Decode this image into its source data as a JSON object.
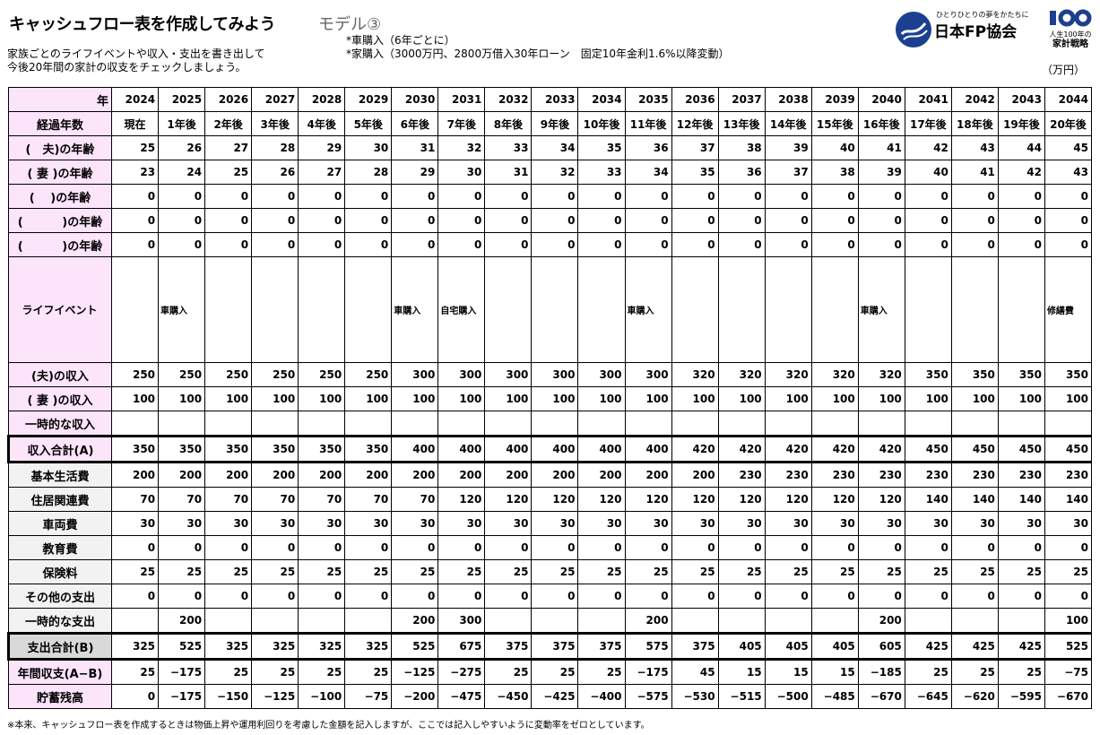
{
  "header": {
    "title": "キャッシュフロー表を作成してみよう",
    "model": "モデル③",
    "description": [
      "家族ごとのライフイベントや収入・支出を書き出して",
      "今後20年間の家計の収支をチェックしましょう。"
    ],
    "notes": [
      "*車購入（6年ごとに）",
      "*家購入（3000万円、2800万借入30年ローン　固定10年金利1.6%以降変動）"
    ],
    "logo_tagline": "ひとりひとりの夢をかたちに",
    "logo_name": "日本FP協会",
    "logo100_text": [
      "人生100年の",
      "家計戦略"
    ],
    "unit": "（万円）"
  },
  "colors": {
    "label_pink": "#fce4fb",
    "label_gray": "#f2f2f2",
    "label_dark_gray": "#d9d9d9",
    "logo_blue": "#1d3f8f"
  },
  "table": {
    "year_label": "年",
    "years": [
      "2024",
      "2025",
      "2026",
      "2027",
      "2028",
      "2029",
      "2030",
      "2031",
      "2032",
      "2033",
      "2034",
      "2035",
      "2036",
      "2037",
      "2038",
      "2039",
      "2040",
      "2041",
      "2042",
      "2043",
      "2044"
    ],
    "elapsed_label": "経過年数",
    "elapsed": [
      "現在",
      "1年後",
      "2年後",
      "3年後",
      "4年後",
      "5年後",
      "6年後",
      "7年後",
      "8年後",
      "9年後",
      "10年後",
      "11年後",
      "12年後",
      "13年後",
      "14年後",
      "15年後",
      "16年後",
      "17年後",
      "18年後",
      "19年後",
      "20年後"
    ],
    "rows": [
      {
        "key": "husband-age",
        "label": "(　夫)の年齢",
        "style": "pink",
        "values": [
          "25",
          "26",
          "27",
          "28",
          "29",
          "30",
          "31",
          "32",
          "33",
          "34",
          "35",
          "36",
          "37",
          "38",
          "39",
          "40",
          "41",
          "42",
          "43",
          "44",
          "45"
        ]
      },
      {
        "key": "wife-age",
        "label": "( 妻 )の年齢",
        "style": "pink",
        "values": [
          "23",
          "24",
          "25",
          "26",
          "27",
          "28",
          "29",
          "30",
          "31",
          "32",
          "33",
          "34",
          "35",
          "36",
          "37",
          "38",
          "39",
          "40",
          "41",
          "42",
          "43"
        ]
      },
      {
        "key": "member3-age",
        "label": "(　 )の年齢",
        "style": "pink",
        "values": [
          "0",
          "0",
          "0",
          "0",
          "0",
          "0",
          "0",
          "0",
          "0",
          "0",
          "0",
          "0",
          "0",
          "0",
          "0",
          "0",
          "0",
          "0",
          "0",
          "0",
          "0"
        ]
      },
      {
        "key": "member4-age",
        "label": "(　　　 )の年齢",
        "style": "pink",
        "values": [
          "0",
          "0",
          "0",
          "0",
          "0",
          "0",
          "0",
          "0",
          "0",
          "0",
          "0",
          "0",
          "0",
          "0",
          "0",
          "0",
          "0",
          "0",
          "0",
          "0",
          "0"
        ]
      },
      {
        "key": "member5-age",
        "label": "(　　　 )の年齢",
        "style": "pink",
        "values": [
          "0",
          "0",
          "0",
          "0",
          "0",
          "0",
          "0",
          "0",
          "0",
          "0",
          "0",
          "0",
          "0",
          "0",
          "0",
          "0",
          "0",
          "0",
          "0",
          "0",
          "0"
        ]
      },
      {
        "key": "life-event",
        "label": "ライフイベント",
        "style": "event",
        "values": [
          "",
          "車購入",
          "",
          "",
          "",
          "",
          "車購入",
          "自宅購入",
          "",
          "",
          "",
          "車購入",
          "",
          "",
          "",
          "",
          "車購入",
          "",
          "",
          "",
          "修繕費"
        ]
      },
      {
        "key": "husband-income",
        "label": "(夫)の収入",
        "style": "pink",
        "values": [
          "250",
          "250",
          "250",
          "250",
          "250",
          "250",
          "300",
          "300",
          "300",
          "300",
          "300",
          "300",
          "320",
          "320",
          "320",
          "320",
          "320",
          "350",
          "350",
          "350",
          "350"
        ]
      },
      {
        "key": "wife-income",
        "label": "( 妻 )の収入",
        "style": "pink",
        "values": [
          "100",
          "100",
          "100",
          "100",
          "100",
          "100",
          "100",
          "100",
          "100",
          "100",
          "100",
          "100",
          "100",
          "100",
          "100",
          "100",
          "100",
          "100",
          "100",
          "100",
          "100"
        ]
      },
      {
        "key": "temporary-income",
        "label": "一時的な収入",
        "style": "pink",
        "values": [
          "",
          "",
          "",
          "",
          "",
          "",
          "",
          "",
          "",
          "",
          "",
          "",
          "",
          "",
          "",
          "",
          "",
          "",
          "",
          "",
          ""
        ]
      },
      {
        "key": "income-total",
        "label": "収入合計(A)",
        "style": "pink-total",
        "values": [
          "350",
          "350",
          "350",
          "350",
          "350",
          "350",
          "400",
          "400",
          "400",
          "400",
          "400",
          "400",
          "420",
          "420",
          "420",
          "420",
          "420",
          "450",
          "450",
          "450",
          "450"
        ]
      },
      {
        "key": "basic-living",
        "label": "基本生活費",
        "style": "gray",
        "values": [
          "200",
          "200",
          "200",
          "200",
          "200",
          "200",
          "200",
          "200",
          "200",
          "200",
          "200",
          "200",
          "200",
          "230",
          "230",
          "230",
          "230",
          "230",
          "230",
          "230",
          "230"
        ]
      },
      {
        "key": "housing",
        "label": "住居関連費",
        "style": "gray",
        "values": [
          "70",
          "70",
          "70",
          "70",
          "70",
          "70",
          "70",
          "120",
          "120",
          "120",
          "120",
          "120",
          "120",
          "120",
          "120",
          "120",
          "120",
          "140",
          "140",
          "140",
          "140"
        ]
      },
      {
        "key": "vehicle",
        "label": "車両費",
        "style": "gray",
        "values": [
          "30",
          "30",
          "30",
          "30",
          "30",
          "30",
          "30",
          "30",
          "30",
          "30",
          "30",
          "30",
          "30",
          "30",
          "30",
          "30",
          "30",
          "30",
          "30",
          "30",
          "30"
        ]
      },
      {
        "key": "education",
        "label": "教育費",
        "style": "gray",
        "values": [
          "0",
          "0",
          "0",
          "0",
          "0",
          "0",
          "0",
          "0",
          "0",
          "0",
          "0",
          "0",
          "0",
          "0",
          "0",
          "0",
          "0",
          "0",
          "0",
          "0",
          "0"
        ]
      },
      {
        "key": "insurance",
        "label": "保険料",
        "style": "gray",
        "values": [
          "25",
          "25",
          "25",
          "25",
          "25",
          "25",
          "25",
          "25",
          "25",
          "25",
          "25",
          "25",
          "25",
          "25",
          "25",
          "25",
          "25",
          "25",
          "25",
          "25",
          "25"
        ]
      },
      {
        "key": "other-expense",
        "label": "その他の支出",
        "style": "gray",
        "values": [
          "0",
          "0",
          "0",
          "0",
          "0",
          "0",
          "0",
          "0",
          "0",
          "0",
          "0",
          "0",
          "0",
          "0",
          "0",
          "0",
          "0",
          "0",
          "0",
          "0",
          "0"
        ]
      },
      {
        "key": "temporary-expense",
        "label": "一時的な支出",
        "style": "gray",
        "values": [
          "",
          "200",
          "",
          "",
          "",
          "",
          "200",
          "300",
          "",
          "",
          "",
          "200",
          "",
          "",
          "",
          "",
          "200",
          "",
          "",
          "",
          "100"
        ]
      },
      {
        "key": "expense-total",
        "label": "支出合計(B)",
        "style": "dgray-total",
        "values": [
          "325",
          "525",
          "325",
          "325",
          "325",
          "325",
          "525",
          "675",
          "375",
          "375",
          "375",
          "575",
          "375",
          "405",
          "405",
          "405",
          "605",
          "425",
          "425",
          "425",
          "525"
        ]
      },
      {
        "key": "annual-balance",
        "label": "年間収支(A−B)",
        "style": "pink",
        "values": [
          "25",
          "−175",
          "25",
          "25",
          "25",
          "25",
          "−125",
          "−275",
          "25",
          "25",
          "25",
          "−175",
          "45",
          "15",
          "15",
          "15",
          "−185",
          "25",
          "25",
          "25",
          "−75"
        ]
      },
      {
        "key": "savings-balance",
        "label": "貯蓄残高",
        "style": "pink",
        "values": [
          "0",
          "−175",
          "−150",
          "−125",
          "−100",
          "−75",
          "−200",
          "−475",
          "−450",
          "−425",
          "−400",
          "−575",
          "−530",
          "−515",
          "−500",
          "−485",
          "−670",
          "−645",
          "−620",
          "−595",
          "−670"
        ]
      }
    ]
  },
  "footnote": "※本来、キャッシュフロー表を作成するときは物価上昇や運用利回りを考慮した金額を記入しますが、ここでは記入しやすいように変動率をゼロとしています。"
}
